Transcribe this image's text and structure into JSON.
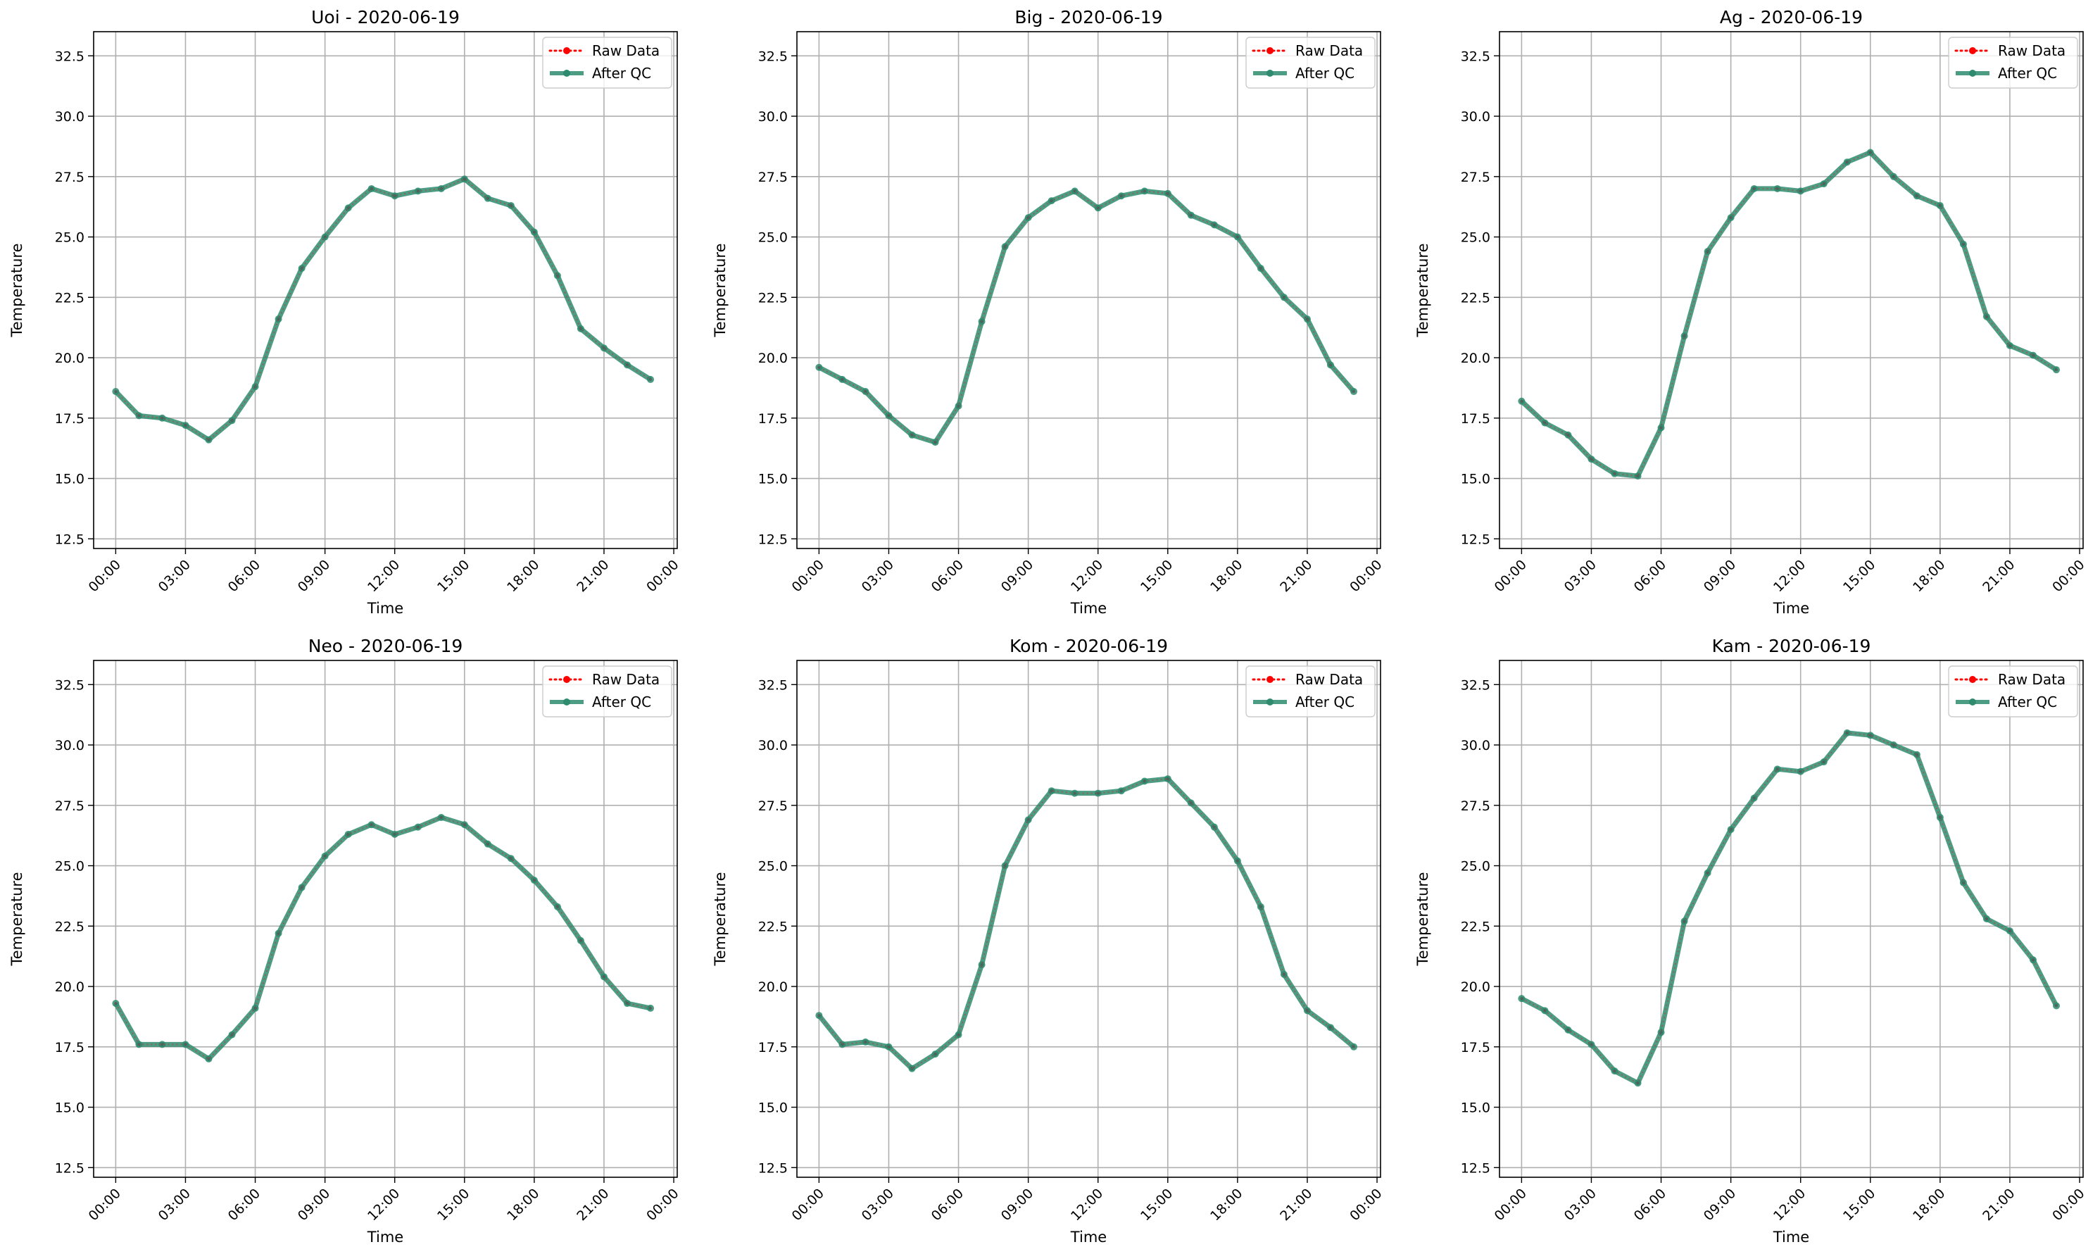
{
  "figure": {
    "background": "#ffffff"
  },
  "style": {
    "raw_color": "#ff0000",
    "qc_color": "#2e8b6e",
    "grid_color": "#b0b0b0",
    "frame_color": "#000000"
  },
  "chart_data": [
    {
      "type": "line",
      "title": "Uoi - 2020-06-19",
      "xlabel": "Time",
      "ylabel": "Temperature",
      "ylim": [
        12.1,
        33.5
      ],
      "xlim": [
        -0.95,
        24.15
      ],
      "yticks": [
        "12.5",
        "15.0",
        "17.5",
        "20.0",
        "22.5",
        "25.0",
        "27.5",
        "30.0",
        "32.5"
      ],
      "xticks": [
        "00:00",
        "03:00",
        "06:00",
        "09:00",
        "12:00",
        "15:00",
        "18:00",
        "21:00",
        "00:00"
      ],
      "grid": true,
      "legend_position": "top-right",
      "x": [
        "00:00",
        "01:00",
        "02:00",
        "03:00",
        "04:00",
        "05:00",
        "06:00",
        "07:00",
        "08:00",
        "09:00",
        "10:00",
        "11:00",
        "12:00",
        "13:00",
        "14:00",
        "15:00",
        "16:00",
        "17:00",
        "18:00",
        "19:00",
        "20:00",
        "21:00",
        "22:00",
        "23:00"
      ],
      "series": [
        {
          "name": "Raw Data",
          "values": [
            18.6,
            17.6,
            17.5,
            17.2,
            16.6,
            17.4,
            18.8,
            21.6,
            23.7,
            25.0,
            26.2,
            27.0,
            26.7,
            26.9,
            27.0,
            27.4,
            26.6,
            26.3,
            25.2,
            23.4,
            21.2,
            20.4,
            19.7,
            19.1
          ]
        },
        {
          "name": "After QC",
          "values": [
            18.6,
            17.6,
            17.5,
            17.2,
            16.6,
            17.4,
            18.8,
            21.6,
            23.7,
            25.0,
            26.2,
            27.0,
            26.7,
            26.9,
            27.0,
            27.4,
            26.6,
            26.3,
            25.2,
            23.4,
            21.2,
            20.4,
            19.7,
            19.1
          ]
        }
      ]
    },
    {
      "type": "line",
      "title": "Big - 2020-06-19",
      "xlabel": "Time",
      "ylabel": "Temperature",
      "ylim": [
        12.1,
        33.5
      ],
      "xlim": [
        -0.95,
        24.15
      ],
      "yticks": [
        "12.5",
        "15.0",
        "17.5",
        "20.0",
        "22.5",
        "25.0",
        "27.5",
        "30.0",
        "32.5"
      ],
      "xticks": [
        "00:00",
        "03:00",
        "06:00",
        "09:00",
        "12:00",
        "15:00",
        "18:00",
        "21:00",
        "00:00"
      ],
      "grid": true,
      "legend_position": "top-right",
      "x": [
        "00:00",
        "01:00",
        "02:00",
        "03:00",
        "04:00",
        "05:00",
        "06:00",
        "07:00",
        "08:00",
        "09:00",
        "10:00",
        "11:00",
        "12:00",
        "13:00",
        "14:00",
        "15:00",
        "16:00",
        "17:00",
        "18:00",
        "19:00",
        "20:00",
        "21:00",
        "22:00",
        "23:00"
      ],
      "series": [
        {
          "name": "Raw Data",
          "values": [
            19.6,
            19.1,
            18.6,
            17.6,
            16.8,
            16.5,
            18.0,
            21.5,
            24.6,
            25.8,
            26.5,
            26.9,
            26.2,
            26.7,
            26.9,
            26.8,
            25.9,
            25.5,
            25.0,
            23.7,
            22.5,
            21.6,
            19.7,
            18.6
          ]
        },
        {
          "name": "After QC",
          "values": [
            19.6,
            19.1,
            18.6,
            17.6,
            16.8,
            16.5,
            18.0,
            21.5,
            24.6,
            25.8,
            26.5,
            26.9,
            26.2,
            26.7,
            26.9,
            26.8,
            25.9,
            25.5,
            25.0,
            23.7,
            22.5,
            21.6,
            19.7,
            18.6
          ]
        }
      ]
    },
    {
      "type": "line",
      "title": "Ag - 2020-06-19",
      "xlabel": "Time",
      "ylabel": "Temperature",
      "ylim": [
        12.1,
        33.5
      ],
      "xlim": [
        -0.95,
        24.15
      ],
      "yticks": [
        "12.5",
        "15.0",
        "17.5",
        "20.0",
        "22.5",
        "25.0",
        "27.5",
        "30.0",
        "32.5"
      ],
      "xticks": [
        "00:00",
        "03:00",
        "06:00",
        "09:00",
        "12:00",
        "15:00",
        "18:00",
        "21:00",
        "00:00"
      ],
      "grid": true,
      "legend_position": "top-right",
      "x": [
        "00:00",
        "01:00",
        "02:00",
        "03:00",
        "04:00",
        "05:00",
        "06:00",
        "07:00",
        "08:00",
        "09:00",
        "10:00",
        "11:00",
        "12:00",
        "13:00",
        "14:00",
        "15:00",
        "16:00",
        "17:00",
        "18:00",
        "19:00",
        "20:00",
        "21:00",
        "22:00",
        "23:00"
      ],
      "series": [
        {
          "name": "Raw Data",
          "values": [
            18.2,
            17.3,
            16.8,
            15.8,
            15.2,
            15.1,
            17.1,
            20.9,
            24.4,
            25.8,
            27.0,
            27.0,
            26.9,
            27.2,
            28.1,
            28.5,
            27.5,
            26.7,
            26.3,
            24.7,
            21.7,
            20.5,
            20.1,
            19.5
          ]
        },
        {
          "name": "After QC",
          "values": [
            18.2,
            17.3,
            16.8,
            15.8,
            15.2,
            15.1,
            17.1,
            20.9,
            24.4,
            25.8,
            27.0,
            27.0,
            26.9,
            27.2,
            28.1,
            28.5,
            27.5,
            26.7,
            26.3,
            24.7,
            21.7,
            20.5,
            20.1,
            19.5
          ]
        }
      ]
    },
    {
      "type": "line",
      "title": "Neo - 2020-06-19",
      "xlabel": "Time",
      "ylabel": "Temperature",
      "ylim": [
        12.1,
        33.5
      ],
      "xlim": [
        -0.95,
        24.15
      ],
      "yticks": [
        "12.5",
        "15.0",
        "17.5",
        "20.0",
        "22.5",
        "25.0",
        "27.5",
        "30.0",
        "32.5"
      ],
      "xticks": [
        "00:00",
        "03:00",
        "06:00",
        "09:00",
        "12:00",
        "15:00",
        "18:00",
        "21:00",
        "00:00"
      ],
      "grid": true,
      "legend_position": "top-right",
      "x": [
        "00:00",
        "01:00",
        "02:00",
        "03:00",
        "04:00",
        "05:00",
        "06:00",
        "07:00",
        "08:00",
        "09:00",
        "10:00",
        "11:00",
        "12:00",
        "13:00",
        "14:00",
        "15:00",
        "16:00",
        "17:00",
        "18:00",
        "19:00",
        "20:00",
        "21:00",
        "22:00",
        "23:00"
      ],
      "series": [
        {
          "name": "Raw Data",
          "values": [
            19.3,
            17.6,
            17.6,
            17.6,
            17.0,
            18.0,
            19.1,
            22.2,
            24.1,
            25.4,
            26.3,
            26.7,
            26.3,
            26.6,
            27.0,
            26.7,
            25.9,
            25.3,
            24.4,
            23.3,
            21.9,
            20.4,
            19.3,
            19.1
          ]
        },
        {
          "name": "After QC",
          "values": [
            19.3,
            17.6,
            17.6,
            17.6,
            17.0,
            18.0,
            19.1,
            22.2,
            24.1,
            25.4,
            26.3,
            26.7,
            26.3,
            26.6,
            27.0,
            26.7,
            25.9,
            25.3,
            24.4,
            23.3,
            21.9,
            20.4,
            19.3,
            19.1
          ]
        }
      ]
    },
    {
      "type": "line",
      "title": "Kom - 2020-06-19",
      "xlabel": "Time",
      "ylabel": "Temperature",
      "ylim": [
        12.1,
        33.5
      ],
      "xlim": [
        -0.95,
        24.15
      ],
      "yticks": [
        "12.5",
        "15.0",
        "17.5",
        "20.0",
        "22.5",
        "25.0",
        "27.5",
        "30.0",
        "32.5"
      ],
      "xticks": [
        "00:00",
        "03:00",
        "06:00",
        "09:00",
        "12:00",
        "15:00",
        "18:00",
        "21:00",
        "00:00"
      ],
      "grid": true,
      "legend_position": "top-right",
      "x": [
        "00:00",
        "01:00",
        "02:00",
        "03:00",
        "04:00",
        "05:00",
        "06:00",
        "07:00",
        "08:00",
        "09:00",
        "10:00",
        "11:00",
        "12:00",
        "13:00",
        "14:00",
        "15:00",
        "16:00",
        "17:00",
        "18:00",
        "19:00",
        "20:00",
        "21:00",
        "22:00",
        "23:00"
      ],
      "series": [
        {
          "name": "Raw Data",
          "values": [
            18.8,
            17.6,
            17.7,
            17.5,
            16.6,
            17.2,
            18.0,
            20.9,
            25.0,
            26.9,
            28.1,
            28.0,
            28.0,
            28.1,
            28.5,
            28.6,
            27.6,
            26.6,
            25.2,
            23.3,
            20.5,
            19.0,
            18.3,
            17.5
          ]
        },
        {
          "name": "After QC",
          "values": [
            18.8,
            17.6,
            17.7,
            17.5,
            16.6,
            17.2,
            18.0,
            20.9,
            25.0,
            26.9,
            28.1,
            28.0,
            28.0,
            28.1,
            28.5,
            28.6,
            27.6,
            26.6,
            25.2,
            23.3,
            20.5,
            19.0,
            18.3,
            17.5
          ]
        }
      ]
    },
    {
      "type": "line",
      "title": "Kam - 2020-06-19",
      "xlabel": "Time",
      "ylabel": "Temperature",
      "ylim": [
        12.1,
        33.5
      ],
      "xlim": [
        -0.95,
        24.15
      ],
      "yticks": [
        "12.5",
        "15.0",
        "17.5",
        "20.0",
        "22.5",
        "25.0",
        "27.5",
        "30.0",
        "32.5"
      ],
      "xticks": [
        "00:00",
        "03:00",
        "06:00",
        "09:00",
        "12:00",
        "15:00",
        "18:00",
        "21:00",
        "00:00"
      ],
      "grid": true,
      "legend_position": "top-right",
      "x": [
        "00:00",
        "01:00",
        "02:00",
        "03:00",
        "04:00",
        "05:00",
        "06:00",
        "07:00",
        "08:00",
        "09:00",
        "10:00",
        "11:00",
        "12:00",
        "13:00",
        "14:00",
        "15:00",
        "16:00",
        "17:00",
        "18:00",
        "19:00",
        "20:00",
        "21:00",
        "22:00",
        "23:00"
      ],
      "series": [
        {
          "name": "Raw Data",
          "values": [
            19.5,
            19.0,
            18.2,
            17.6,
            16.5,
            16.0,
            18.1,
            22.7,
            24.7,
            26.5,
            27.8,
            29.0,
            28.9,
            29.3,
            30.5,
            30.4,
            30.0,
            29.6,
            27.0,
            24.3,
            22.8,
            22.3,
            21.1,
            19.2
          ]
        },
        {
          "name": "After QC",
          "values": [
            19.5,
            19.0,
            18.2,
            17.6,
            16.5,
            16.0,
            18.1,
            22.7,
            24.7,
            26.5,
            27.8,
            29.0,
            28.9,
            29.3,
            30.5,
            30.4,
            30.0,
            29.6,
            27.0,
            24.3,
            22.8,
            22.3,
            21.1,
            19.2
          ]
        }
      ]
    }
  ]
}
